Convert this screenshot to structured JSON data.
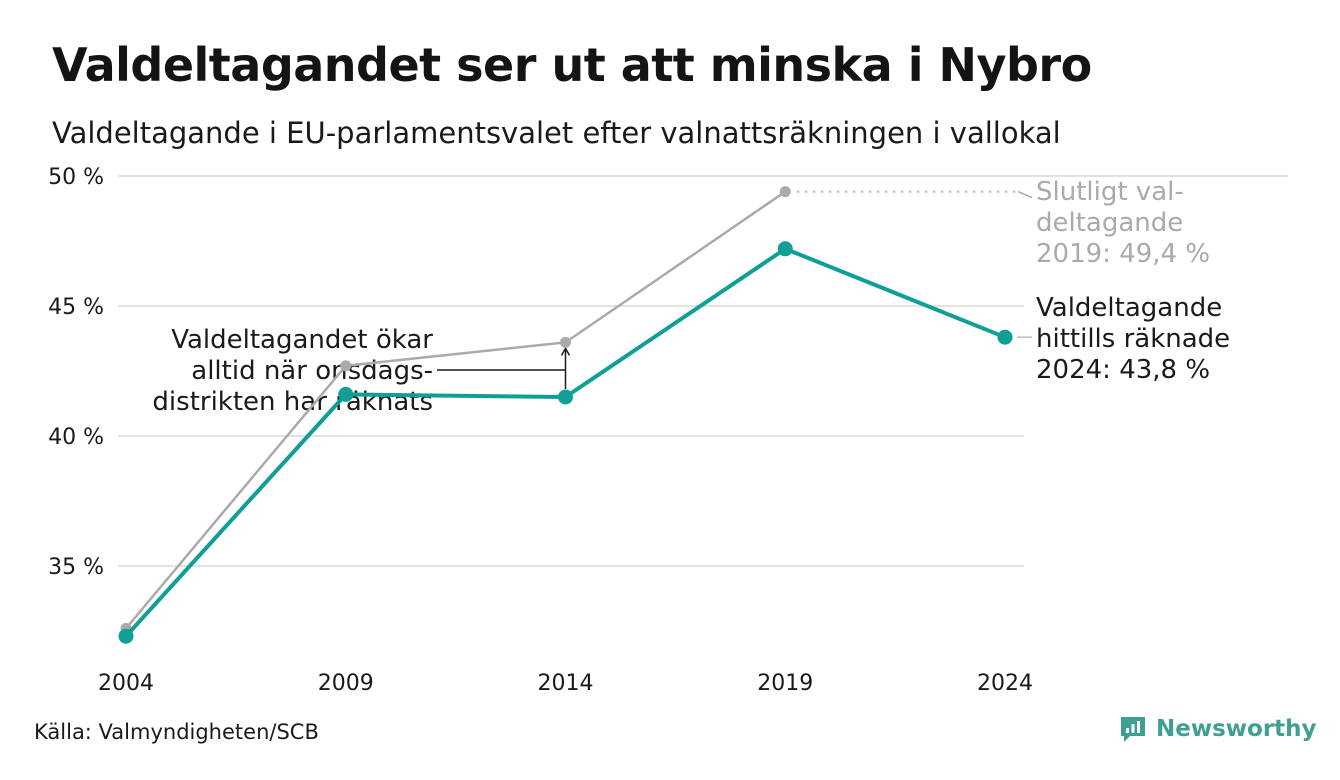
{
  "title": "Valdeltagandet ser ut att minska i Nybro",
  "subtitle": "Valdeltagande i EU-parlamentsvalet efter valnattsräkningen i vallokal",
  "source": "Källa: Valmyndigheten/SCB",
  "brand": {
    "name": "Newsworthy",
    "icon": "newsworthy-logo-icon",
    "color": "#3f9f92"
  },
  "chart_data": {
    "type": "line",
    "x": [
      "2004",
      "2009",
      "2014",
      "2019",
      "2024"
    ],
    "ylim": [
      32,
      50
    ],
    "yticks": [
      35,
      40,
      45,
      50
    ],
    "ytick_labels": [
      "35 %",
      "40 %",
      "45 %",
      "50 %"
    ],
    "grid": true,
    "series": [
      {
        "key": "final",
        "color": "#aaaaaa",
        "values": [
          32.6,
          42.7,
          43.6,
          49.4,
          null
        ]
      },
      {
        "key": "counted",
        "color": "#0f9f96",
        "values": [
          32.3,
          41.6,
          41.5,
          47.2,
          43.8
        ]
      }
    ],
    "annotations": {
      "final_2019": [
        "Slutligt val-",
        "deltagande",
        "2019: 49,4 %"
      ],
      "counted_2024": [
        "Valdeltagande",
        "hittills räknade",
        "2024: 43,8 %"
      ],
      "gap_note": [
        "Valdeltagandet ökar",
        "alltid när onsdags-",
        "distrikten har räknats"
      ]
    }
  }
}
